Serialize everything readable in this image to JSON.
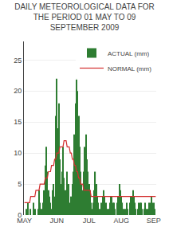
{
  "chart_data": {
    "type": "bar",
    "title": "DAILY METEOROLOGICAL DATA FOR THE PERIOD 01 MAY TO 09 SEPTEMBER 2009",
    "categories": [
      "MAY",
      null,
      null,
      null,
      null,
      null,
      null,
      null,
      null,
      null,
      null,
      null,
      null,
      null,
      null,
      null,
      null,
      null,
      null,
      null,
      null,
      null,
      null,
      null,
      null,
      null,
      null,
      null,
      null,
      null,
      null,
      "JUN",
      null,
      null,
      null,
      null,
      null,
      null,
      null,
      null,
      null,
      null,
      null,
      null,
      null,
      null,
      null,
      null,
      null,
      null,
      null,
      null,
      null,
      null,
      null,
      null,
      null,
      null,
      null,
      null,
      null,
      null,
      "JUL",
      null,
      null,
      null,
      null,
      null,
      null,
      null,
      null,
      null,
      null,
      null,
      null,
      null,
      null,
      null,
      null,
      null,
      null,
      null,
      null,
      null,
      null,
      null,
      null,
      null,
      null,
      null,
      null,
      null,
      null,
      "AUG",
      null,
      null,
      null,
      null,
      null,
      null,
      null,
      null,
      null,
      null,
      null,
      null,
      null,
      null,
      null,
      null,
      null,
      null,
      null,
      null,
      null,
      null,
      null,
      null,
      null,
      null,
      null,
      null,
      null,
      null,
      "SEP",
      null,
      null
    ],
    "series": [
      {
        "name": "ACTUAL (mm)",
        "type": "bar",
        "color": "#2e7d32",
        "values": [
          0,
          0,
          1,
          2,
          0,
          0,
          1,
          0,
          0,
          2,
          1,
          0,
          0,
          1,
          4,
          2,
          1,
          0,
          2,
          4,
          8,
          11,
          7,
          4,
          3,
          2,
          1,
          4,
          5,
          3,
          16,
          22,
          14,
          18,
          9,
          5,
          7,
          11,
          6,
          4,
          3,
          7,
          5,
          2,
          1,
          3,
          5,
          7,
          13,
          18,
          22,
          20,
          16,
          11,
          7,
          5,
          4,
          7,
          11,
          13,
          9,
          7,
          5,
          4,
          2,
          1,
          2,
          4,
          7,
          5,
          3,
          2,
          1,
          0,
          2,
          3,
          4,
          3,
          2,
          1,
          0,
          1,
          2,
          3,
          3,
          2,
          2,
          1,
          0,
          2,
          3,
          5,
          4,
          3,
          2,
          1,
          0,
          1,
          2,
          1,
          0,
          2,
          3,
          3,
          4,
          3,
          2,
          1,
          0,
          1,
          2,
          2,
          2,
          1,
          0,
          1,
          2,
          1,
          0,
          1,
          2,
          2,
          3,
          2,
          2,
          1,
          0
        ]
      },
      {
        "name": "NORMAL (mm)",
        "type": "line",
        "color": "#d32f2f",
        "values": [
          2,
          2,
          2,
          2,
          2,
          2,
          3,
          3,
          3,
          3,
          3,
          4,
          4,
          4,
          4,
          5,
          5,
          5,
          5,
          5,
          6,
          6,
          6,
          7,
          7,
          7,
          8,
          8,
          8,
          9,
          9,
          10,
          10,
          10,
          11,
          11,
          11,
          11,
          12,
          12,
          12,
          11,
          11,
          11,
          10,
          10,
          9,
          9,
          8,
          8,
          7,
          7,
          6,
          6,
          5,
          5,
          5,
          4,
          4,
          4,
          4,
          4,
          4,
          4,
          3,
          3,
          3,
          3,
          3,
          3,
          3,
          3,
          3,
          3,
          3,
          3,
          3,
          3,
          3,
          3,
          3,
          3,
          3,
          3,
          3,
          3,
          3,
          3,
          3,
          3,
          3,
          3,
          3,
          3,
          3,
          3,
          3,
          3,
          3,
          3,
          3,
          3,
          3,
          3,
          3,
          3,
          3,
          3,
          3,
          3,
          3,
          3,
          3,
          3,
          3,
          3,
          3,
          3,
          3,
          3,
          3,
          3,
          3,
          3,
          3,
          3,
          3
        ]
      }
    ],
    "ylim": [
      0,
      28
    ],
    "yticks": [
      0,
      5,
      10,
      15,
      20,
      25
    ],
    "grid": true,
    "legend": "upper right"
  }
}
